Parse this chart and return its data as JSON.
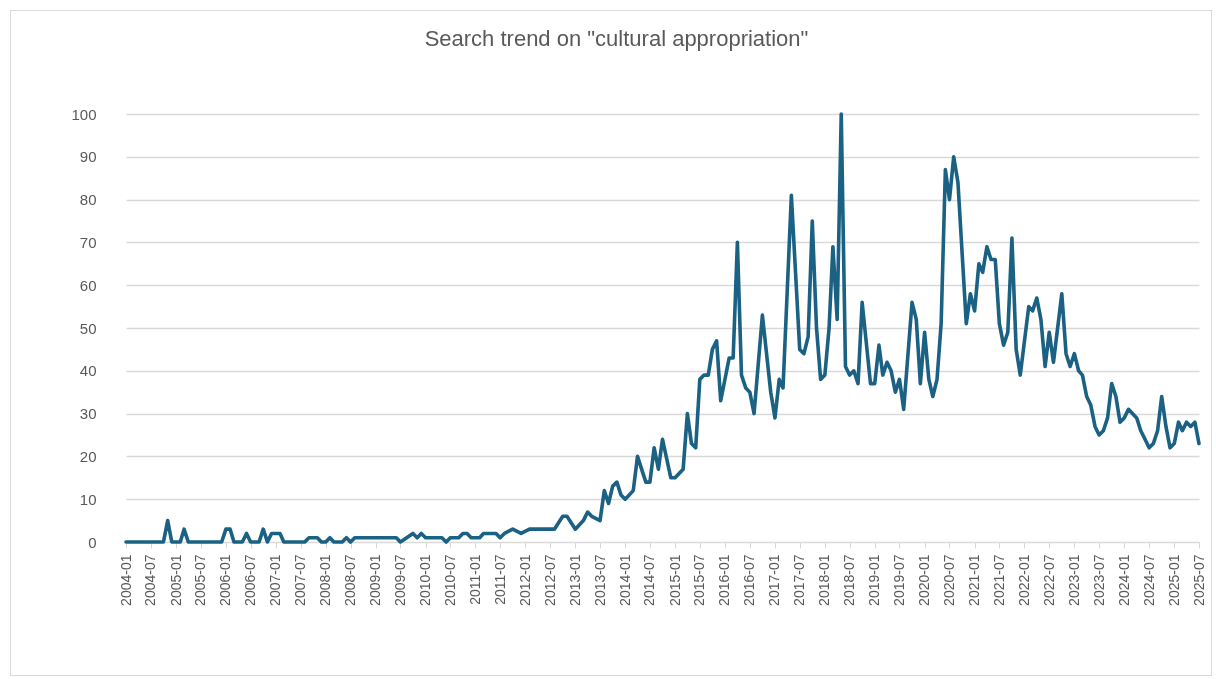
{
  "chart_data": {
    "type": "line",
    "title": "Search trend on \"cultural appropriation\"",
    "x": [
      "2004-01",
      "2004-10",
      "2004-11",
      "2004-12",
      "2005-02",
      "2005-03",
      "2005-04",
      "2005-12",
      "2006-01",
      "2006-02",
      "2006-03",
      "2006-05",
      "2006-06",
      "2006-07",
      "2006-09",
      "2006-10",
      "2006-11",
      "2006-12",
      "2007-02",
      "2007-03",
      "2007-08",
      "2007-09",
      "2007-11",
      "2007-12",
      "2008-01",
      "2008-02",
      "2008-03",
      "2008-05",
      "2008-06",
      "2008-07",
      "2008-08",
      "2009-06",
      "2009-07",
      "2009-10",
      "2009-11",
      "2009-12",
      "2010-01",
      "2010-05",
      "2010-06",
      "2010-07",
      "2010-09",
      "2010-10",
      "2010-11",
      "2010-12",
      "2011-02",
      "2011-03",
      "2011-06",
      "2011-07",
      "2011-08",
      "2011-10",
      "2011-12",
      "2012-02",
      "2012-08",
      "2012-10",
      "2012-11",
      "2013-01",
      "2013-03",
      "2013-04",
      "2013-05",
      "2013-07",
      "2013-08",
      "2013-09",
      "2013-10",
      "2013-11",
      "2013-12",
      "2014-01",
      "2014-03",
      "2014-04",
      "2014-06",
      "2014-07",
      "2014-08",
      "2014-09",
      "2014-10",
      "2014-12",
      "2015-01",
      "2015-03",
      "2015-04",
      "2015-05",
      "2015-06",
      "2015-07",
      "2015-08",
      "2015-09",
      "2015-10",
      "2015-11",
      "2015-12",
      "2016-02",
      "2016-03",
      "2016-04",
      "2016-05",
      "2016-06",
      "2016-07",
      "2016-08",
      "2016-10",
      "2016-12",
      "2017-01",
      "2017-02",
      "2017-03",
      "2017-05",
      "2017-07",
      "2017-08",
      "2017-09",
      "2017-10",
      "2017-11",
      "2017-12",
      "2018-01",
      "2018-02",
      "2018-03",
      "2018-04",
      "2018-05",
      "2018-06",
      "2018-07",
      "2018-08",
      "2018-09",
      "2018-10",
      "2018-12",
      "2019-01",
      "2019-02",
      "2019-03",
      "2019-04",
      "2019-05",
      "2019-06",
      "2019-07",
      "2019-08",
      "2019-10",
      "2019-11",
      "2019-12",
      "2020-01",
      "2020-02",
      "2020-03",
      "2020-04",
      "2020-05",
      "2020-06",
      "2020-07",
      "2020-08",
      "2020-09",
      "2020-11",
      "2020-12",
      "2021-01",
      "2021-02",
      "2021-03",
      "2021-04",
      "2021-05",
      "2021-06",
      "2021-07",
      "2021-08",
      "2021-09",
      "2021-10",
      "2021-11",
      "2021-12",
      "2022-02",
      "2022-03",
      "2022-04",
      "2022-05",
      "2022-06",
      "2022-07",
      "2022-08",
      "2022-10",
      "2022-11",
      "2022-12",
      "2023-01",
      "2023-02",
      "2023-03",
      "2023-04",
      "2023-05",
      "2023-06",
      "2023-07",
      "2023-08",
      "2023-09",
      "2023-10",
      "2023-11",
      "2023-12",
      "2024-01",
      "2024-02",
      "2024-04",
      "2024-05",
      "2024-06",
      "2024-07",
      "2024-08",
      "2024-09",
      "2024-10",
      "2024-11",
      "2024-12",
      "2025-01",
      "2025-02",
      "2025-03",
      "2025-04",
      "2025-05",
      "2025-06",
      "2025-07"
    ],
    "values": [
      0,
      0,
      5,
      0,
      0,
      3,
      0,
      0,
      3,
      3,
      0,
      0,
      2,
      0,
      0,
      3,
      0,
      2,
      2,
      0,
      0,
      1,
      1,
      0,
      0,
      1,
      0,
      0,
      1,
      0,
      1,
      1,
      0,
      2,
      1,
      2,
      1,
      1,
      0,
      1,
      1,
      2,
      2,
      1,
      1,
      2,
      2,
      1,
      2,
      3,
      2,
      3,
      3,
      6,
      6,
      3,
      5,
      7,
      6,
      5,
      12,
      9,
      13,
      14,
      11,
      10,
      12,
      20,
      14,
      14,
      22,
      17,
      24,
      15,
      15,
      17,
      30,
      23,
      22,
      38,
      39,
      39,
      45,
      47,
      33,
      43,
      43,
      70,
      39,
      36,
      35,
      30,
      53,
      35,
      29,
      38,
      36,
      81,
      45,
      44,
      48,
      75,
      50,
      38,
      39,
      50,
      69,
      52,
      100,
      41,
      39,
      40,
      37,
      56,
      37,
      37,
      46,
      39,
      42,
      40,
      35,
      38,
      31,
      56,
      52,
      37,
      49,
      38,
      34,
      38,
      51,
      87,
      80,
      90,
      84,
      51,
      58,
      54,
      65,
      63,
      69,
      66,
      66,
      51,
      46,
      49,
      71,
      45,
      39,
      55,
      54,
      57,
      52,
      41,
      49,
      42,
      58,
      44,
      41,
      44,
      40,
      39,
      34,
      32,
      27,
      25,
      26,
      29,
      37,
      34,
      28,
      29,
      31,
      29,
      26,
      24,
      22,
      23,
      26,
      34,
      27,
      22,
      23,
      28,
      26,
      28,
      27,
      28,
      23
    ],
    "color": "#1b6183",
    "xlim": [
      "2004-01",
      "2025-07"
    ],
    "xticks": [
      "2004-01",
      "2004-07",
      "2005-01",
      "2005-07",
      "2006-01",
      "2006-07",
      "2007-01",
      "2007-07",
      "2008-01",
      "2008-07",
      "2009-01",
      "2009-07",
      "2010-01",
      "2010-07",
      "2011-01",
      "2011-07",
      "2012-01",
      "2012-07",
      "2013-01",
      "2013-07",
      "2014-01",
      "2014-07",
      "2015-01",
      "2015-07",
      "2016-01",
      "2016-07",
      "2017-01",
      "2017-07",
      "2018-01",
      "2018-07",
      "2019-01",
      "2019-07",
      "2020-01",
      "2020-07",
      "2021-01",
      "2021-07",
      "2022-01",
      "2022-07",
      "2023-01",
      "2023-07",
      "2024-01",
      "2024-07",
      "2025-01",
      "2025-07"
    ],
    "ylim": [
      0,
      100
    ],
    "yticks": [
      0,
      10,
      20,
      30,
      40,
      50,
      60,
      70,
      80,
      90,
      100
    ],
    "grid": "y",
    "line_style": "solid"
  }
}
